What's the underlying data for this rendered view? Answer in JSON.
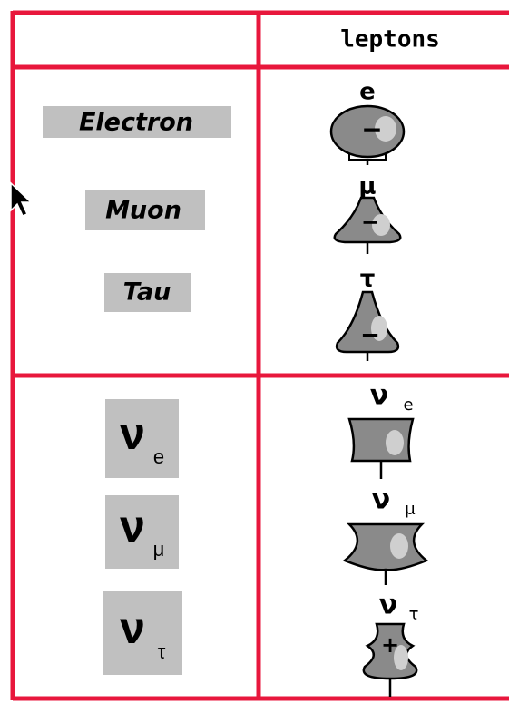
{
  "table": {
    "column_title": "leptons",
    "charged": [
      {
        "name": "Electron",
        "symbol": "e",
        "charge": "−"
      },
      {
        "name": "Muon",
        "symbol": "μ",
        "charge": "−"
      },
      {
        "name": "Tau",
        "symbol": "τ",
        "charge": "−"
      }
    ],
    "neutrinos": [
      {
        "symbol": "ν",
        "subscript": "e"
      },
      {
        "symbol": "ν",
        "subscript": "μ"
      },
      {
        "symbol": "ν",
        "subscript": "τ",
        "charge": "+"
      }
    ]
  }
}
